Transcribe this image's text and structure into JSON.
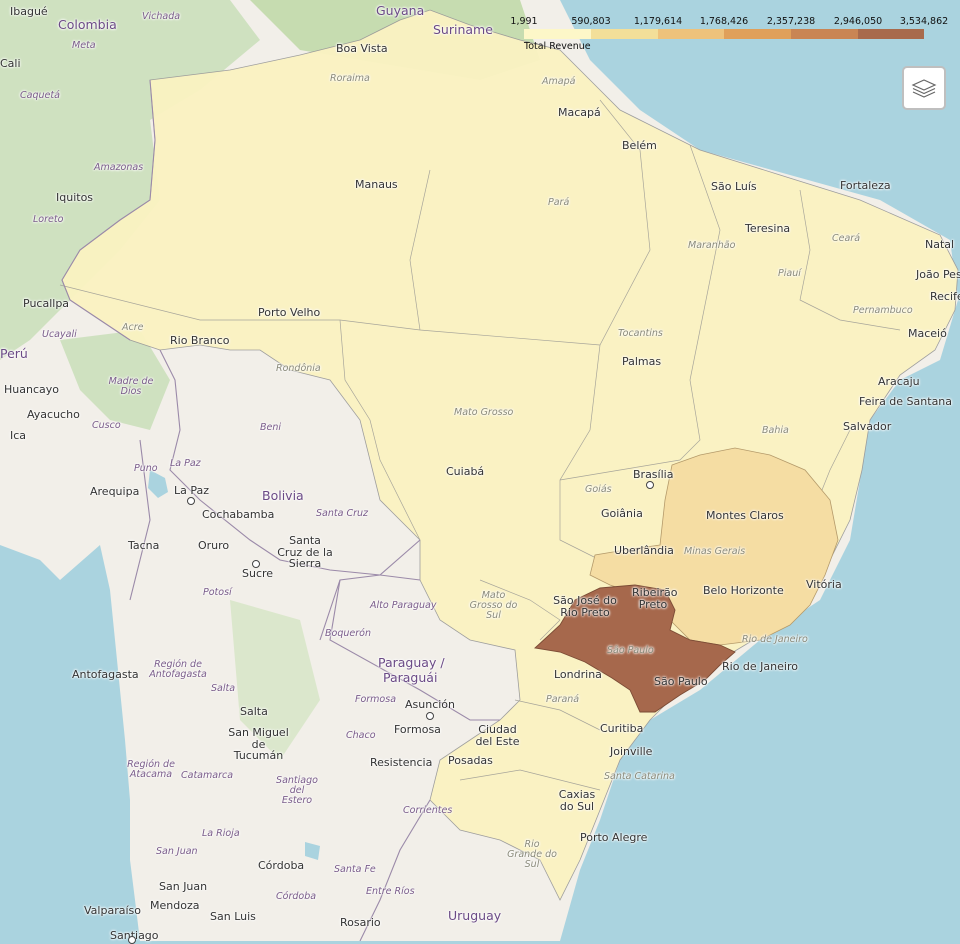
{
  "legend": {
    "caption": "Total Revenue",
    "ticks": [
      "1,991",
      "590,803",
      "1,179,614",
      "1,768,426",
      "2,357,238",
      "2,946,050",
      "3,534,862"
    ],
    "colors": [
      "#fdf7c8",
      "#f3df99",
      "#eec27b",
      "#e0a05a",
      "#c98554",
      "#a86a4c"
    ]
  },
  "layer_control": {
    "icon": "layers-icon"
  },
  "choropleth": {
    "base_fill": "#fbf3c2",
    "minas_gerais_fill": "#f5dda3",
    "sao_paulo_fill": "#a6684c"
  },
  "labels": {
    "countries": [
      "Colombia",
      "Guyana",
      "Suriname",
      "Bolivia",
      "Paraguay /",
      "Paraguái",
      "Uruguay",
      "Perú"
    ],
    "cities": [
      "Ibagué",
      "Cali",
      "Iquitos",
      "Pucallpa",
      "Huancayo",
      "Ayacucho",
      "Ica",
      "Arequipa",
      "Tacna",
      "La Paz",
      "Cochabamba",
      "Oruro",
      "Sucre",
      "Santa Cruz de la Sierra",
      "Antofagasta",
      "Salta",
      "San Miguel de Tucumán",
      "Asunción",
      "Formosa",
      "Resistencia",
      "Posadas",
      "Ciudad del Este",
      "Córdoba",
      "San Juan",
      "Mendoza",
      "San Luis",
      "Valparaíso",
      "Santiago",
      "Rosario",
      "Boa Vista",
      "Macapá",
      "Belém",
      "Manaus",
      "São Luís",
      "Fortaleza",
      "Natal",
      "João Pessoa",
      "Recife",
      "Maceió",
      "Teresina",
      "Aracaju",
      "Feira de Santana",
      "Salvador",
      "Palmas",
      "Porto Velho",
      "Rio Branco",
      "Cuiabá",
      "Brasília",
      "Goiânia",
      "Uberlândia",
      "Montes Claros",
      "Belo Horizonte",
      "Vitória",
      "Ribeirão Preto",
      "São José do Rio Preto",
      "Rio de Janeiro",
      "São Paulo",
      "Londrina",
      "Curitiba",
      "Joinville",
      "Caxias do Sul",
      "Porto Alegre"
    ],
    "regions": [
      "Vichada",
      "Meta",
      "Caquetá",
      "Amazonas",
      "Loreto",
      "Ucayali",
      "Madre de Dios",
      "Cusco",
      "Puno",
      "Beni",
      "La Paz",
      "Santa Cruz",
      "Potosí",
      "Alto Paraguay",
      "Boquerón",
      "Región de Antofagasta",
      "Salta",
      "Formosa",
      "Chaco",
      "Región de Atacama",
      "Catamarca",
      "Santiago del Estero",
      "Corrientes",
      "La Rioja",
      "San Juan",
      "Santa Fe",
      "Córdoba",
      "Entre Ríos",
      "Roraima",
      "Amapá",
      "Pará",
      "Maranhão",
      "Ceará",
      "Piauí",
      "Pernambuco",
      "Acre",
      "Rondônia",
      "Tocantins",
      "Mato Grosso",
      "Bahia",
      "Goiás",
      "Minas Gerais",
      "Mato Grosso do Sul",
      "Rio de Janeiro",
      "São Paulo",
      "Paraná",
      "Santa Catarina",
      "Rio Grande do Sul"
    ]
  }
}
